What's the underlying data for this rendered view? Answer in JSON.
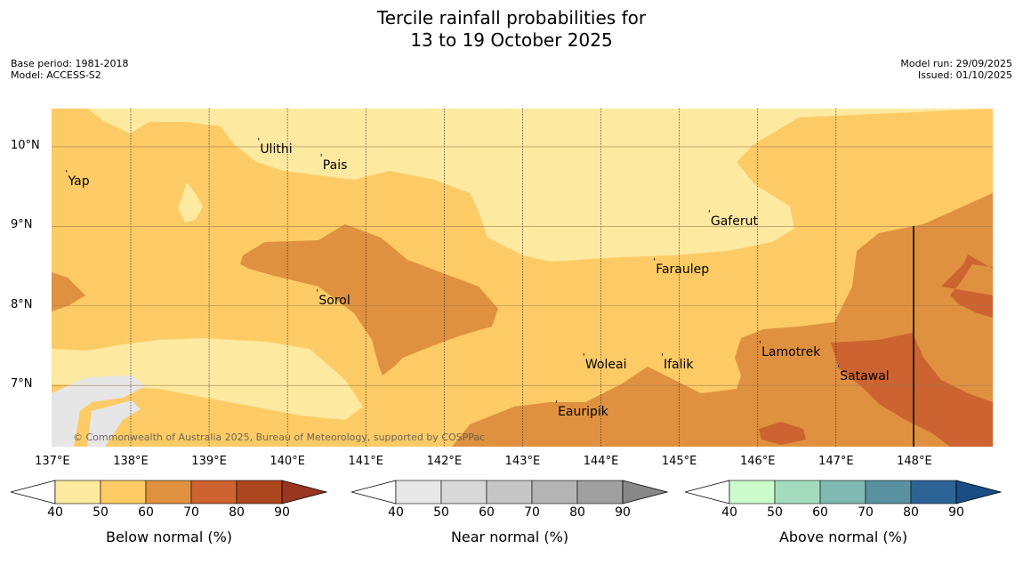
{
  "title": {
    "line1": "Tercile rainfall probabilities for",
    "line2": "13 to 19 October 2025"
  },
  "meta_left": {
    "base_period": "Base period: 1981-2018",
    "model": "Model: ACCESS-S2"
  },
  "meta_right": {
    "model_run": "Model run: 29/09/2025",
    "issued": "Issued: 01/10/2025"
  },
  "map": {
    "latitude_labels": [
      "10°N",
      "9°N",
      "8°N",
      "7°N"
    ],
    "longitude_labels": [
      "137°E",
      "138°E",
      "139°E",
      "140°E",
      "141°E",
      "142°E",
      "143°E",
      "144°E",
      "145°E",
      "146°E",
      "147°E",
      "148°E"
    ],
    "places": [
      {
        "name": "Yap",
        "lon": 137.2,
        "lat": 9.55
      },
      {
        "name": "Ulithi",
        "lon": 139.65,
        "lat": 9.95
      },
      {
        "name": "Pais",
        "lon": 140.45,
        "lat": 9.75
      },
      {
        "name": "Gaferut",
        "lon": 145.4,
        "lat": 9.05
      },
      {
        "name": "Faraulep",
        "lon": 144.7,
        "lat": 8.45
      },
      {
        "name": "Sorol",
        "lon": 140.4,
        "lat": 8.05
      },
      {
        "name": "Woleai",
        "lon": 143.8,
        "lat": 7.25
      },
      {
        "name": "Ifalik",
        "lon": 144.8,
        "lat": 7.25
      },
      {
        "name": "Lamotrek",
        "lon": 146.05,
        "lat": 7.4
      },
      {
        "name": "Satawal",
        "lon": 147.05,
        "lat": 7.1
      },
      {
        "name": "Eauripik",
        "lon": 143.45,
        "lat": 6.65
      }
    ],
    "credit": "© Commonwealth of Australia 2025, Bureau of Meteorology, supported by COSPPac"
  },
  "colorbars": [
    {
      "label": "Below normal (%)",
      "ticks": [
        "40",
        "50",
        "60",
        "70",
        "80",
        "90"
      ],
      "colors": [
        "#fde9a0",
        "#fdcb65",
        "#e09140",
        "#cc6330",
        "#ad4720",
        "#9a3520"
      ]
    },
    {
      "label": "Near normal (%)",
      "ticks": [
        "40",
        "50",
        "60",
        "70",
        "80",
        "90"
      ],
      "colors": [
        "#e8e8e8",
        "#d8d8d8",
        "#c6c6c6",
        "#b4b4b4",
        "#9f9f9f",
        "#888888"
      ]
    },
    {
      "label": "Above normal (%)",
      "ticks": [
        "40",
        "50",
        "60",
        "70",
        "80",
        "90"
      ],
      "colors": [
        "#ccfccc",
        "#a4dbbe",
        "#80b8b2",
        "#5a91a0",
        "#2e6396",
        "#184e85"
      ]
    }
  ],
  "colors": {
    "below_40_50": "#fde9a0",
    "below_50_60": "#fdcb65",
    "below_60_70": "#e09140",
    "below_70_80": "#cc6330",
    "land_mask": "#e6e6e6"
  }
}
